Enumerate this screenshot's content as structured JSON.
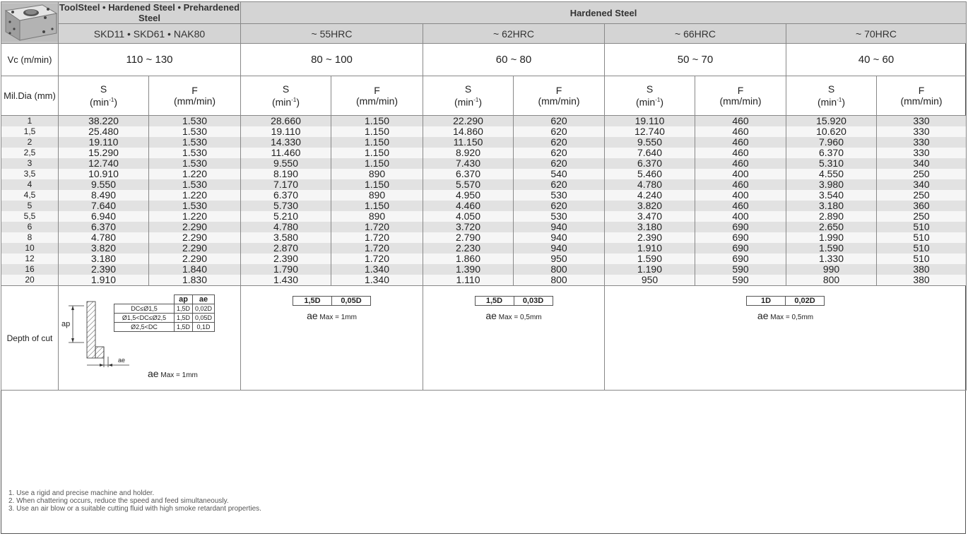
{
  "header": {
    "material_title": "ToolSteel • Hardened Steel • Prehardened Steel",
    "material_grades": "SKD11 • SKD61 • NAK80",
    "hardened_title": "Hardened Steel",
    "hrc": [
      "~ 55HRC",
      "~ 62HRC",
      "~ 66HRC",
      "~ 70HRC"
    ]
  },
  "vc": {
    "label": "Vc (m/min)",
    "values": [
      "110 ~ 130",
      "80 ~ 100",
      "60 ~ 80",
      "50 ~ 70",
      "40 ~ 60"
    ]
  },
  "sub": {
    "dia_label": "Mil.Dia (mm)",
    "s_label": "S",
    "s_unit": "(min",
    "s_exp": "-1",
    "f_label": "F",
    "f_unit": "(mm/min)"
  },
  "rows": [
    {
      "dia": "1",
      "v": [
        "38.220",
        "1.530",
        "28.660",
        "1.150",
        "22.290",
        "620",
        "19.110",
        "460",
        "15.920",
        "330"
      ]
    },
    {
      "dia": "1,5",
      "v": [
        "25.480",
        "1.530",
        "19.110",
        "1.150",
        "14.860",
        "620",
        "12.740",
        "460",
        "10.620",
        "330"
      ]
    },
    {
      "dia": "2",
      "v": [
        "19.110",
        "1.530",
        "14.330",
        "1.150",
        "11.150",
        "620",
        "9.550",
        "460",
        "7.960",
        "330"
      ]
    },
    {
      "dia": "2,5",
      "v": [
        "15.290",
        "1.530",
        "11.460",
        "1.150",
        "8.920",
        "620",
        "7.640",
        "460",
        "6.370",
        "330"
      ]
    },
    {
      "dia": "3",
      "v": [
        "12.740",
        "1.530",
        "9.550",
        "1.150",
        "7.430",
        "620",
        "6.370",
        "460",
        "5.310",
        "340"
      ]
    },
    {
      "dia": "3,5",
      "v": [
        "10.910",
        "1.220",
        "8.190",
        "890",
        "6.370",
        "540",
        "5.460",
        "400",
        "4.550",
        "250"
      ]
    },
    {
      "dia": "4",
      "v": [
        "9.550",
        "1.530",
        "7.170",
        "1.150",
        "5.570",
        "620",
        "4.780",
        "460",
        "3.980",
        "340"
      ]
    },
    {
      "dia": "4,5",
      "v": [
        "8.490",
        "1.220",
        "6.370",
        "890",
        "4.950",
        "530",
        "4.240",
        "400",
        "3.540",
        "250"
      ]
    },
    {
      "dia": "5",
      "v": [
        "7.640",
        "1.530",
        "5.730",
        "1.150",
        "4.460",
        "620",
        "3.820",
        "460",
        "3.180",
        "360"
      ]
    },
    {
      "dia": "5,5",
      "v": [
        "6.940",
        "1.220",
        "5.210",
        "890",
        "4.050",
        "530",
        "3.470",
        "400",
        "2.890",
        "250"
      ]
    },
    {
      "dia": "6",
      "v": [
        "6.370",
        "2.290",
        "4.780",
        "1.720",
        "3.720",
        "940",
        "3.180",
        "690",
        "2.650",
        "510"
      ]
    },
    {
      "dia": "8",
      "v": [
        "4.780",
        "2.290",
        "3.580",
        "1.720",
        "2.790",
        "940",
        "2.390",
        "690",
        "1.990",
        "510"
      ]
    },
    {
      "dia": "10",
      "v": [
        "3.820",
        "2.290",
        "2.870",
        "1.720",
        "2.230",
        "940",
        "1.910",
        "690",
        "1.590",
        "510"
      ]
    },
    {
      "dia": "12",
      "v": [
        "3.180",
        "2.290",
        "2.390",
        "1.720",
        "1.860",
        "950",
        "1.590",
        "690",
        "1.330",
        "510"
      ]
    },
    {
      "dia": "16",
      "v": [
        "2.390",
        "1.840",
        "1.790",
        "1.340",
        "1.390",
        "800",
        "1.190",
        "590",
        "990",
        "380"
      ]
    },
    {
      "dia": "20",
      "v": [
        "1.910",
        "1.830",
        "1.430",
        "1.340",
        "1.110",
        "800",
        "950",
        "590",
        "800",
        "380"
      ]
    }
  ],
  "depth": {
    "label": "Depth of cut",
    "diagram": {
      "ap_symbol": "ap",
      "ae_symbol": "ae",
      "table": {
        "head": [
          "ap",
          "ae"
        ],
        "rows": [
          {
            "cond": "DC≤Ø1,5",
            "ap": "1,5D",
            "ae": "0,02D"
          },
          {
            "cond": "Ø1,5<DC≤Ø2,5",
            "ap": "1,5D",
            "ae": "0,05D"
          },
          {
            "cond": "Ø2,5<DC",
            "ap": "1,5D",
            "ae": "0,1D"
          }
        ]
      },
      "max_prefix": "ae",
      "max_text": "Max = 1mm"
    },
    "groups": [
      {
        "ap": "1,5D",
        "ae": "0,05D",
        "max_prefix": "ae",
        "max_text": "Max = 1mm"
      },
      {
        "ap": "1,5D",
        "ae": "0,03D",
        "max_prefix": "ae",
        "max_text": "Max = 0,5mm"
      },
      {
        "ap": "1D",
        "ae": "0,02D",
        "max_prefix": "ae",
        "max_text": "Max = 0,5mm"
      }
    ]
  },
  "notes": [
    "1. Use a rigid and precise machine and holder.",
    "2. When chattering occurs, reduce the speed and feed simultaneously.",
    "3. Use an air blow or a suitable cutting fluid with high smoke retardant properties."
  ]
}
